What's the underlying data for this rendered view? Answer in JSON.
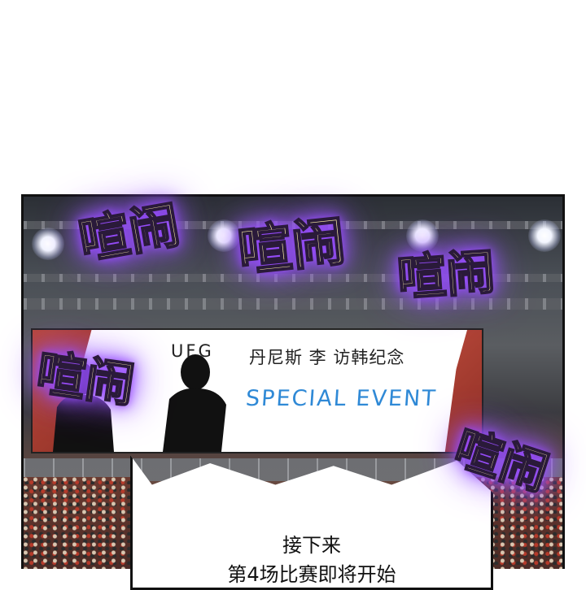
{
  "comic_panel": {
    "screen": {
      "logo": "UFG",
      "subtitle": "丹尼斯 李 访韩纪念",
      "event": "SPECIAL EVENT"
    },
    "speech_bubble": {
      "line1": "接下来",
      "line2": "第4场比赛即将开始"
    },
    "sound_effects": [
      "喧闹",
      "喧闹",
      "喧闹",
      "喧闹",
      "喧闹"
    ]
  }
}
